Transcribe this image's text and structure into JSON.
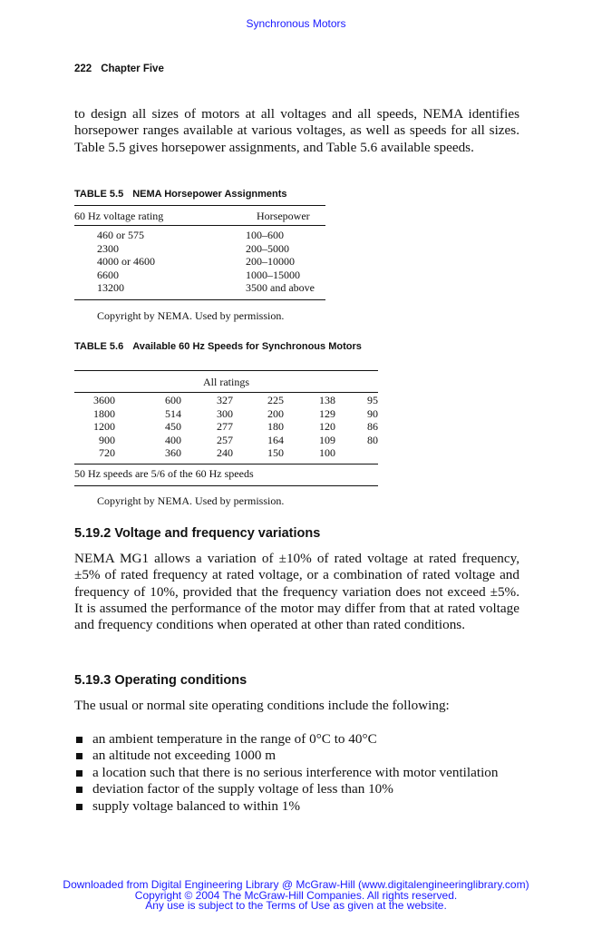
{
  "header": {
    "running_title": "Synchronous Motors",
    "page_number": "222",
    "chapter": "Chapter Five"
  },
  "intro_paragraph": "to design all sizes of motors at all voltages and all speeds, NEMA identifies horsepower ranges available at various voltages, as well as speeds for all sizes. Table 5.5 gives horsepower assignments, and Table 5.6 available speeds.",
  "table55": {
    "number": "TABLE 5.5",
    "title": "NEMA Horsepower Assignments",
    "columns": [
      "60 Hz voltage rating",
      "Horsepower"
    ],
    "rows": [
      [
        "460 or 575",
        "100–600"
      ],
      [
        "2300",
        "200–5000"
      ],
      [
        "4000 or 4600",
        "200–10000"
      ],
      [
        "6600",
        "1000–15000"
      ],
      [
        "13200",
        "3500 and above"
      ]
    ],
    "copyright": "Copyright by NEMA. Used by permission."
  },
  "table56": {
    "number": "TABLE 5.6",
    "title": "Available 60 Hz Speeds for Synchronous Motors",
    "header": "All ratings",
    "rows": [
      [
        "3600",
        "600",
        "327",
        "225",
        "138",
        "95"
      ],
      [
        "1800",
        "514",
        "300",
        "200",
        "129",
        "90"
      ],
      [
        "1200",
        "450",
        "277",
        "180",
        "120",
        "86"
      ],
      [
        "900",
        "400",
        "257",
        "164",
        "109",
        "80"
      ],
      [
        "720",
        "360",
        "240",
        "150",
        "100",
        ""
      ]
    ],
    "note": "50 Hz speeds are 5/6 of the 60 Hz speeds",
    "copyright": "Copyright by NEMA. Used by permission."
  },
  "section1": {
    "heading": "5.19.2 Voltage and frequency variations",
    "text": "NEMA MG1 allows a variation of ±10% of rated voltage at rated frequency, ±5% of rated frequency at rated voltage, or a combination of rated voltage and frequency of 10%, provided that the frequency variation does not exceed ±5%. It is assumed the performance of the motor may differ from that at rated voltage and frequency conditions when operated at other than rated conditions."
  },
  "section2": {
    "heading": "5.19.3 Operating conditions",
    "text": "The usual or normal site operating conditions include the following:",
    "bullets": [
      "an ambient temperature in the range of 0°C to 40°C",
      "an altitude not exceeding 1000 m",
      "a location such that there is no serious interference with motor ventilation",
      "deviation factor of the supply voltage of less than 10%",
      "supply voltage balanced to within 1%"
    ]
  },
  "footer": [
    "Downloaded from Digital Engineering Library @ McGraw-Hill (www.digitalengineeringlibrary.com)",
    "Copyright © 2004 The McGraw-Hill Companies. All rights reserved.",
    "Any use is subject to the Terms of Use as given at the website."
  ]
}
